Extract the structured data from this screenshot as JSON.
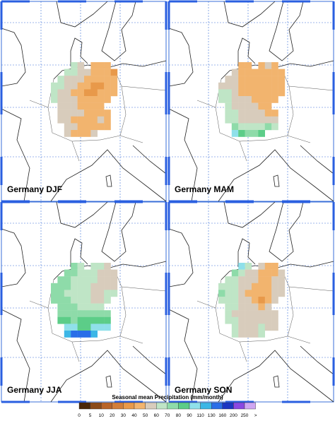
{
  "panels": [
    {
      "label": "Germany DJF",
      "grid": [
        [
          null,
          null,
          null,
          65,
          55,
          null,
          45,
          45,
          40,
          null
        ],
        [
          null,
          null,
          65,
          65,
          55,
          55,
          45,
          45,
          40,
          35
        ],
        [
          null,
          65,
          55,
          55,
          55,
          45,
          45,
          45,
          40,
          45
        ],
        [
          65,
          65,
          55,
          55,
          45,
          45,
          35,
          35,
          45,
          45
        ],
        [
          65,
          55,
          55,
          45,
          45,
          35,
          35,
          45,
          45,
          45
        ],
        [
          65,
          55,
          55,
          55,
          45,
          45,
          45,
          45,
          45,
          null
        ],
        [
          null,
          55,
          55,
          55,
          45,
          45,
          45,
          45,
          null,
          null
        ],
        [
          null,
          55,
          55,
          55,
          55,
          45,
          45,
          45,
          45,
          null
        ],
        [
          null,
          55,
          55,
          45,
          45,
          45,
          45,
          55,
          45,
          null
        ],
        [
          null,
          null,
          55,
          55,
          45,
          45,
          45,
          45,
          45,
          null
        ],
        [
          null,
          null,
          55,
          45,
          45,
          45,
          55,
          null,
          null,
          null
        ]
      ]
    },
    {
      "label": "Germany MAM",
      "grid": [
        [
          null,
          null,
          null,
          45,
          45,
          null,
          45,
          55,
          45,
          null
        ],
        [
          null,
          null,
          55,
          45,
          45,
          45,
          45,
          45,
          45,
          45
        ],
        [
          null,
          55,
          55,
          45,
          45,
          45,
          45,
          45,
          45,
          45
        ],
        [
          55,
          55,
          55,
          45,
          45,
          45,
          45,
          45,
          45,
          45
        ],
        [
          65,
          65,
          55,
          45,
          45,
          45,
          45,
          45,
          45,
          45
        ],
        [
          65,
          65,
          55,
          55,
          55,
          45,
          45,
          45,
          45,
          null
        ],
        [
          null,
          65,
          55,
          55,
          55,
          55,
          45,
          45,
          null,
          null
        ],
        [
          null,
          65,
          65,
          55,
          55,
          55,
          55,
          45,
          45,
          null
        ],
        [
          null,
          65,
          65,
          55,
          55,
          55,
          55,
          55,
          55,
          null
        ],
        [
          null,
          null,
          75,
          65,
          65,
          65,
          65,
          75,
          65,
          null
        ],
        [
          null,
          null,
          100,
          85,
          75,
          75,
          85,
          null,
          null,
          null
        ]
      ]
    },
    {
      "label": "Germany JJA",
      "grid": [
        [
          null,
          null,
          null,
          75,
          65,
          null,
          65,
          65,
          55,
          null
        ],
        [
          null,
          null,
          75,
          75,
          65,
          65,
          65,
          55,
          55,
          55
        ],
        [
          null,
          75,
          75,
          65,
          65,
          65,
          65,
          55,
          55,
          55
        ],
        [
          75,
          75,
          75,
          65,
          65,
          65,
          55,
          55,
          55,
          55
        ],
        [
          75,
          75,
          65,
          65,
          65,
          65,
          55,
          55,
          65,
          65
        ],
        [
          75,
          75,
          75,
          65,
          65,
          65,
          55,
          55,
          65,
          null
        ],
        [
          null,
          75,
          75,
          75,
          65,
          65,
          65,
          65,
          null,
          null
        ],
        [
          null,
          75,
          75,
          75,
          75,
          75,
          75,
          75,
          75,
          null
        ],
        [
          null,
          85,
          85,
          75,
          85,
          85,
          85,
          85,
          85,
          null
        ],
        [
          null,
          null,
          100,
          100,
          85,
          85,
          100,
          100,
          100,
          null
        ],
        [
          null,
          null,
          120,
          140,
          140,
          140,
          120,
          null,
          null,
          null
        ]
      ]
    },
    {
      "label": "Germany SON",
      "grid": [
        [
          null,
          null,
          null,
          100,
          65,
          null,
          55,
          45,
          45,
          null
        ],
        [
          null,
          null,
          75,
          65,
          55,
          55,
          45,
          45,
          45,
          55
        ],
        [
          null,
          65,
          65,
          55,
          55,
          55,
          45,
          45,
          55,
          55
        ],
        [
          65,
          65,
          65,
          55,
          55,
          45,
          45,
          45,
          55,
          55
        ],
        [
          75,
          65,
          65,
          55,
          45,
          45,
          45,
          45,
          55,
          55
        ],
        [
          65,
          65,
          65,
          55,
          55,
          45,
          35,
          45,
          55,
          null
        ],
        [
          null,
          65,
          65,
          55,
          55,
          55,
          45,
          55,
          null,
          null
        ],
        [
          null,
          65,
          55,
          55,
          55,
          55,
          55,
          55,
          55,
          null
        ],
        [
          null,
          65,
          65,
          55,
          55,
          55,
          55,
          55,
          55,
          null
        ],
        [
          null,
          null,
          65,
          55,
          55,
          55,
          65,
          55,
          55,
          null
        ],
        [
          null,
          null,
          65,
          55,
          55,
          55,
          65,
          null,
          null,
          null
        ]
      ]
    }
  ],
  "colorbar": {
    "title": "Seasonal mean Precipitation (mm/month)",
    "bounds": [
      0,
      5,
      10,
      20,
      30,
      40,
      50,
      60,
      70,
      80,
      90,
      110,
      130,
      160,
      200,
      250
    ],
    "overflow_label": ">",
    "colors": [
      "#4a2608",
      "#8a4a1a",
      "#b8642a",
      "#d27e3a",
      "#e8994a",
      "#f2b46e",
      "#d8ccbc",
      "#bfe5c6",
      "#8edba9",
      "#5ccd88",
      "#8fe0ea",
      "#3cb6e6",
      "#2a6ee8",
      "#1c36c2",
      "#8a48e2",
      "#cfa6f2"
    ]
  }
}
